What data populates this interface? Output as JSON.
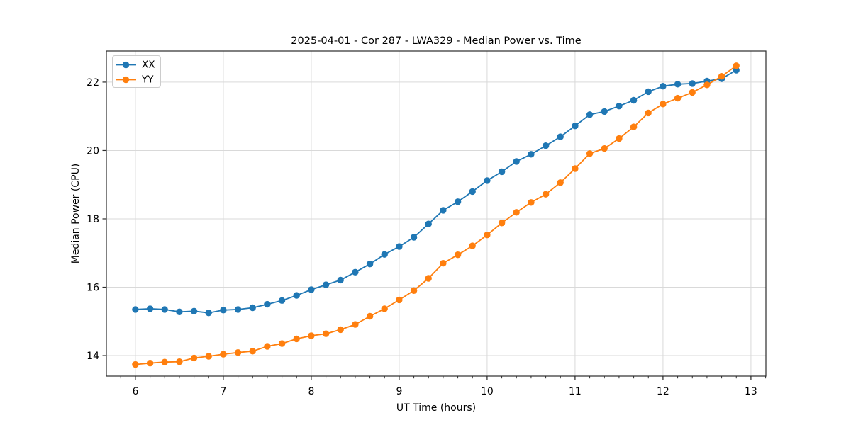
{
  "figure": {
    "background": "#ffffff",
    "frame_color": "#2b2b2b"
  },
  "chart_data": {
    "type": "line",
    "title": "2025-04-01 - Cor 287 - LWA329 - Median Power vs. Time",
    "xlabel": "UT Time (hours)",
    "ylabel": "Median Power (CPU)",
    "xlim": [
      5.67,
      13.17
    ],
    "ylim": [
      13.4,
      22.91
    ],
    "xticks": [
      6,
      7,
      8,
      9,
      10,
      11,
      12,
      13
    ],
    "yticks": [
      14,
      16,
      18,
      20,
      22
    ],
    "x_minor_step": 0.166667,
    "grid": true,
    "grid_color": "#d9d9d9",
    "legend_position": "upper-left",
    "marker": "circle",
    "x": [
      6.0,
      6.167,
      6.333,
      6.5,
      6.667,
      6.833,
      7.0,
      7.167,
      7.333,
      7.5,
      7.667,
      7.833,
      8.0,
      8.167,
      8.333,
      8.5,
      8.667,
      8.833,
      9.0,
      9.167,
      9.333,
      9.5,
      9.667,
      9.833,
      10.0,
      10.167,
      10.333,
      10.5,
      10.667,
      10.833,
      11.0,
      11.167,
      11.333,
      11.5,
      11.667,
      11.833,
      12.0,
      12.167,
      12.333,
      12.5,
      12.667,
      12.833
    ],
    "series": [
      {
        "name": "XX",
        "color": "#1f77b4",
        "values": [
          15.35,
          15.37,
          15.35,
          15.28,
          15.3,
          15.25,
          15.33,
          15.35,
          15.4,
          15.5,
          15.61,
          15.76,
          15.93,
          16.07,
          16.21,
          16.44,
          16.68,
          16.96,
          17.19,
          17.46,
          17.85,
          18.25,
          18.5,
          18.8,
          19.12,
          19.38,
          19.68,
          19.89,
          20.14,
          20.4,
          20.72,
          21.05,
          21.14,
          21.3,
          21.47,
          21.72,
          21.88,
          21.94,
          21.96,
          22.03,
          22.1,
          22.35
        ]
      },
      {
        "name": "YY",
        "color": "#ff7f0e",
        "values": [
          13.74,
          13.78,
          13.81,
          13.82,
          13.93,
          13.98,
          14.04,
          14.09,
          14.13,
          14.27,
          14.35,
          14.49,
          14.58,
          14.64,
          14.76,
          14.91,
          15.15,
          15.37,
          15.63,
          15.9,
          16.26,
          16.7,
          16.95,
          17.21,
          17.53,
          17.88,
          18.19,
          18.48,
          18.72,
          19.06,
          19.47,
          19.91,
          20.06,
          20.35,
          20.69,
          21.1,
          21.36,
          21.53,
          21.7,
          21.92,
          22.17,
          22.48
        ]
      }
    ]
  }
}
